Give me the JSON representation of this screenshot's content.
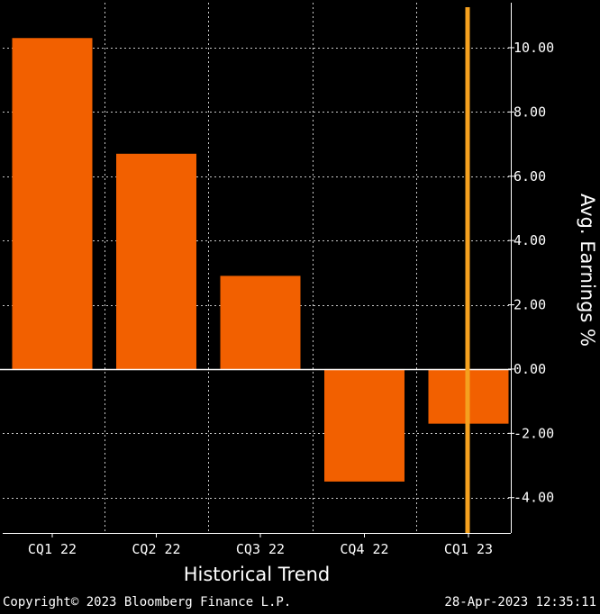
{
  "chart_data": {
    "type": "bar",
    "title": "",
    "xlabel": "Historical Trend",
    "ylabel": "Avg. Earnings %",
    "categories": [
      "CQ1 22",
      "CQ2 22",
      "CQ3 22",
      "CQ4 22",
      "CQ1 23"
    ],
    "values": [
      10.3,
      6.7,
      2.9,
      -3.5,
      -1.7
    ],
    "ylim": [
      -5.1,
      11.4
    ],
    "yticks": [
      "10.00",
      "8.00",
      "6.00",
      "4.00",
      "2.00",
      "0.00",
      "-2.00",
      "-4.00"
    ],
    "ytick_values": [
      10,
      8,
      6,
      4,
      2,
      0,
      -2,
      -4
    ],
    "grid": true,
    "bar_color": "#f26000",
    "marker_category": "CQ1 23",
    "marker_color": "#f5a11f",
    "background": "#000000"
  },
  "footer": {
    "copyright": "Copyright© 2023 Bloomberg Finance L.P.",
    "timestamp": "28-Apr-2023 12:35:11"
  }
}
